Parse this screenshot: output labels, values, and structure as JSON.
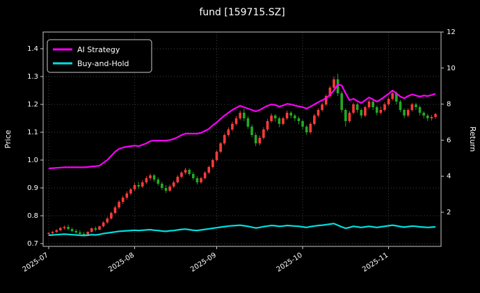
{
  "title": "fund [159715.SZ]",
  "chart_data": {
    "type": "candlestick+line",
    "title": "fund [159715.SZ]",
    "grid": true,
    "background": "#000000",
    "x_tick_labels": [
      "2025-07",
      "2025-08",
      "2025-09",
      "2025-10",
      "2025-11"
    ],
    "x_tick_indices": [
      0,
      22,
      43,
      65,
      87
    ],
    "left_axis": {
      "label": "Price",
      "ticks": [
        0.7,
        0.8,
        0.9,
        1.0,
        1.1,
        1.2,
        1.3,
        1.4
      ],
      "range": [
        0.69,
        1.46
      ]
    },
    "right_axis": {
      "label": "Return",
      "ticks": [
        2,
        4,
        6,
        8,
        10,
        12
      ],
      "range": [
        0.1,
        12.0
      ]
    },
    "legend": {
      "position": "upper left",
      "entries": [
        "AI Strategy",
        "Buy-and-Hold"
      ]
    },
    "candles": {
      "name": "fund daily OHLC",
      "up_color": "#ff3b3b",
      "down_color": "#22aa22",
      "ohlc": [
        [
          0.735,
          0.742,
          0.73,
          0.738
        ],
        [
          0.738,
          0.745,
          0.733,
          0.742
        ],
        [
          0.742,
          0.752,
          0.738,
          0.748
        ],
        [
          0.748,
          0.76,
          0.745,
          0.756
        ],
        [
          0.756,
          0.765,
          0.75,
          0.76
        ],
        [
          0.76,
          0.768,
          0.748,
          0.752
        ],
        [
          0.752,
          0.758,
          0.74,
          0.745
        ],
        [
          0.745,
          0.752,
          0.736,
          0.74
        ],
        [
          0.74,
          0.748,
          0.73,
          0.735
        ],
        [
          0.735,
          0.742,
          0.726,
          0.73
        ],
        [
          0.73,
          0.744,
          0.728,
          0.742
        ],
        [
          0.742,
          0.758,
          0.74,
          0.755
        ],
        [
          0.755,
          0.762,
          0.744,
          0.75
        ],
        [
          0.75,
          0.765,
          0.748,
          0.762
        ],
        [
          0.762,
          0.78,
          0.758,
          0.776
        ],
        [
          0.776,
          0.796,
          0.772,
          0.79
        ],
        [
          0.79,
          0.815,
          0.786,
          0.81
        ],
        [
          0.81,
          0.836,
          0.806,
          0.83
        ],
        [
          0.83,
          0.856,
          0.824,
          0.85
        ],
        [
          0.85,
          0.872,
          0.842,
          0.865
        ],
        [
          0.865,
          0.888,
          0.858,
          0.88
        ],
        [
          0.88,
          0.9,
          0.874,
          0.895
        ],
        [
          0.895,
          0.918,
          0.89,
          0.91
        ],
        [
          0.91,
          0.922,
          0.896,
          0.905
        ],
        [
          0.905,
          0.928,
          0.9,
          0.92
        ],
        [
          0.92,
          0.942,
          0.915,
          0.935
        ],
        [
          0.935,
          0.952,
          0.928,
          0.945
        ],
        [
          0.945,
          0.95,
          0.922,
          0.93
        ],
        [
          0.93,
          0.938,
          0.908,
          0.915
        ],
        [
          0.915,
          0.922,
          0.892,
          0.9
        ],
        [
          0.9,
          0.91,
          0.882,
          0.89
        ],
        [
          0.89,
          0.912,
          0.886,
          0.905
        ],
        [
          0.905,
          0.926,
          0.9,
          0.92
        ],
        [
          0.92,
          0.946,
          0.916,
          0.94
        ],
        [
          0.94,
          0.96,
          0.934,
          0.955
        ],
        [
          0.955,
          0.972,
          0.948,
          0.965
        ],
        [
          0.965,
          0.97,
          0.944,
          0.95
        ],
        [
          0.95,
          0.958,
          0.928,
          0.935
        ],
        [
          0.935,
          0.942,
          0.912,
          0.92
        ],
        [
          0.92,
          0.94,
          0.915,
          0.935
        ],
        [
          0.935,
          0.96,
          0.93,
          0.955
        ],
        [
          0.955,
          0.98,
          0.95,
          0.975
        ],
        [
          0.975,
          1.005,
          0.97,
          1.0
        ],
        [
          1.0,
          1.035,
          0.995,
          1.03
        ],
        [
          1.03,
          1.065,
          1.025,
          1.06
        ],
        [
          1.06,
          1.095,
          1.054,
          1.09
        ],
        [
          1.09,
          1.118,
          1.084,
          1.11
        ],
        [
          1.11,
          1.138,
          1.104,
          1.13
        ],
        [
          1.13,
          1.158,
          1.124,
          1.15
        ],
        [
          1.15,
          1.178,
          1.144,
          1.17
        ],
        [
          1.17,
          1.185,
          1.14,
          1.15
        ],
        [
          1.15,
          1.158,
          1.112,
          1.12
        ],
        [
          1.12,
          1.128,
          1.082,
          1.09
        ],
        [
          1.09,
          1.098,
          1.05,
          1.06
        ],
        [
          1.06,
          1.088,
          1.052,
          1.08
        ],
        [
          1.08,
          1.118,
          1.074,
          1.11
        ],
        [
          1.11,
          1.148,
          1.104,
          1.14
        ],
        [
          1.14,
          1.168,
          1.134,
          1.16
        ],
        [
          1.16,
          1.165,
          1.138,
          1.15
        ],
        [
          1.15,
          1.156,
          1.118,
          1.13
        ],
        [
          1.13,
          1.156,
          1.124,
          1.15
        ],
        [
          1.15,
          1.178,
          1.144,
          1.17
        ],
        [
          1.17,
          1.176,
          1.15,
          1.16
        ],
        [
          1.16,
          1.166,
          1.14,
          1.15
        ],
        [
          1.15,
          1.156,
          1.128,
          1.14
        ],
        [
          1.14,
          1.146,
          1.11,
          1.12
        ],
        [
          1.12,
          1.126,
          1.09,
          1.1
        ],
        [
          1.1,
          1.136,
          1.094,
          1.13
        ],
        [
          1.13,
          1.166,
          1.124,
          1.16
        ],
        [
          1.16,
          1.186,
          1.154,
          1.18
        ],
        [
          1.18,
          1.206,
          1.174,
          1.2
        ],
        [
          1.2,
          1.236,
          1.194,
          1.23
        ],
        [
          1.23,
          1.266,
          1.224,
          1.26
        ],
        [
          1.26,
          1.3,
          1.254,
          1.29
        ],
        [
          1.29,
          1.31,
          1.23,
          1.24
        ],
        [
          1.24,
          1.248,
          1.17,
          1.18
        ],
        [
          1.18,
          1.186,
          1.12,
          1.14
        ],
        [
          1.14,
          1.176,
          1.134,
          1.17
        ],
        [
          1.17,
          1.206,
          1.164,
          1.2
        ],
        [
          1.2,
          1.206,
          1.17,
          1.18
        ],
        [
          1.18,
          1.186,
          1.15,
          1.16
        ],
        [
          1.16,
          1.196,
          1.154,
          1.19
        ],
        [
          1.19,
          1.216,
          1.184,
          1.21
        ],
        [
          1.21,
          1.216,
          1.18,
          1.19
        ],
        [
          1.19,
          1.196,
          1.16,
          1.17
        ],
        [
          1.17,
          1.192,
          1.164,
          1.18
        ],
        [
          1.18,
          1.208,
          1.174,
          1.2
        ],
        [
          1.2,
          1.226,
          1.194,
          1.22
        ],
        [
          1.22,
          1.246,
          1.214,
          1.24
        ],
        [
          1.24,
          1.246,
          1.2,
          1.21
        ],
        [
          1.21,
          1.216,
          1.172,
          1.18
        ],
        [
          1.18,
          1.186,
          1.15,
          1.16
        ],
        [
          1.16,
          1.186,
          1.154,
          1.18
        ],
        [
          1.18,
          1.206,
          1.174,
          1.2
        ],
        [
          1.2,
          1.206,
          1.18,
          1.19
        ],
        [
          1.19,
          1.196,
          1.16,
          1.17
        ],
        [
          1.17,
          1.176,
          1.15,
          1.16
        ],
        [
          1.16,
          1.166,
          1.14,
          1.15
        ],
        [
          1.15,
          1.162,
          1.142,
          1.155
        ],
        [
          1.155,
          1.17,
          1.148,
          1.165
        ]
      ]
    },
    "series": [
      {
        "name": "AI Strategy",
        "color": "#ff00ff",
        "values": [
          0.97,
          0.971,
          0.972,
          0.973,
          0.974,
          0.974,
          0.974,
          0.974,
          0.974,
          0.974,
          0.975,
          0.977,
          0.978,
          0.98,
          0.99,
          1.0,
          1.015,
          1.03,
          1.04,
          1.045,
          1.048,
          1.05,
          1.052,
          1.05,
          1.055,
          1.06,
          1.068,
          1.07,
          1.07,
          1.07,
          1.07,
          1.072,
          1.076,
          1.082,
          1.09,
          1.095,
          1.095,
          1.095,
          1.095,
          1.098,
          1.105,
          1.112,
          1.125,
          1.135,
          1.148,
          1.16,
          1.17,
          1.18,
          1.188,
          1.195,
          1.19,
          1.185,
          1.18,
          1.175,
          1.18,
          1.188,
          1.195,
          1.2,
          1.198,
          1.192,
          1.196,
          1.202,
          1.2,
          1.196,
          1.193,
          1.19,
          1.185,
          1.192,
          1.2,
          1.208,
          1.215,
          1.222,
          1.235,
          1.25,
          1.272,
          1.268,
          1.24,
          1.215,
          1.22,
          1.212,
          1.205,
          1.215,
          1.225,
          1.218,
          1.21,
          1.218,
          1.228,
          1.238,
          1.25,
          1.24,
          1.228,
          1.222,
          1.23,
          1.236,
          1.232,
          1.228,
          1.232,
          1.23,
          1.234,
          1.238
        ]
      },
      {
        "name": "Buy-and-Hold",
        "color": "#00e0e0",
        "values": [
          0.73,
          0.731,
          0.732,
          0.733,
          0.734,
          0.733,
          0.732,
          0.731,
          0.73,
          0.729,
          0.73,
          0.732,
          0.731,
          0.733,
          0.736,
          0.738,
          0.74,
          0.742,
          0.744,
          0.745,
          0.746,
          0.747,
          0.748,
          0.747,
          0.748,
          0.749,
          0.75,
          0.748,
          0.747,
          0.745,
          0.744,
          0.746,
          0.747,
          0.749,
          0.751,
          0.752,
          0.75,
          0.748,
          0.747,
          0.749,
          0.751,
          0.753,
          0.755,
          0.757,
          0.759,
          0.761,
          0.763,
          0.764,
          0.765,
          0.766,
          0.764,
          0.762,
          0.759,
          0.756,
          0.758,
          0.761,
          0.763,
          0.765,
          0.764,
          0.762,
          0.763,
          0.765,
          0.764,
          0.763,
          0.762,
          0.76,
          0.758,
          0.761,
          0.763,
          0.765,
          0.766,
          0.768,
          0.77,
          0.772,
          0.766,
          0.76,
          0.755,
          0.758,
          0.762,
          0.76,
          0.758,
          0.76,
          0.762,
          0.76,
          0.758,
          0.76,
          0.762,
          0.764,
          0.766,
          0.764,
          0.761,
          0.759,
          0.761,
          0.763,
          0.762,
          0.76,
          0.759,
          0.758,
          0.759,
          0.76
        ]
      }
    ]
  }
}
